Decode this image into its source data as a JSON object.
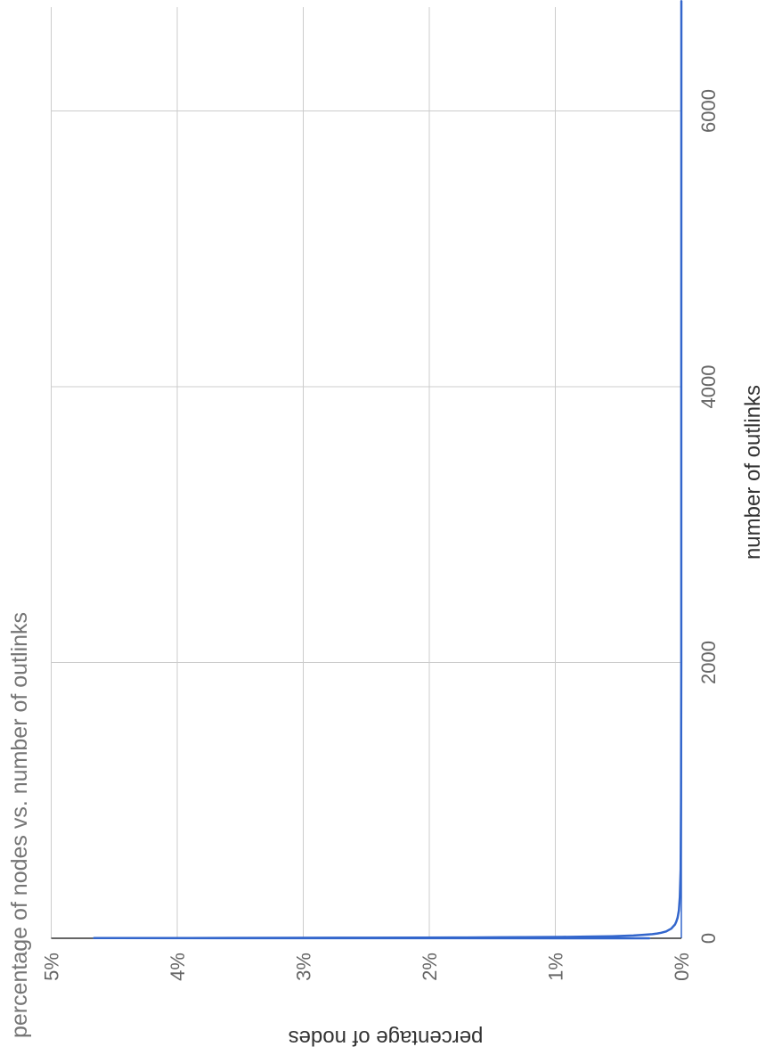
{
  "chart_data": {
    "type": "line",
    "orientation": "rotated 90 degrees clockwise",
    "title": "percentage of nodes vs. number of outlinks",
    "xlabel": "number of outlinks",
    "ylabel": "percentage of nodes",
    "xlim": [
      0,
      6800
    ],
    "ylim": [
      0,
      5
    ],
    "x_ticks": [
      "0",
      "2000",
      "4000",
      "6000"
    ],
    "y_ticks": [
      "0%",
      "1%",
      "2%",
      "3%",
      "4%",
      "5%"
    ],
    "grid": true,
    "legend": "none",
    "colors": {
      "series": "#3366cc",
      "grid": "#cccccc",
      "axis": "#333333"
    },
    "series": [
      {
        "x": [
          0,
          1,
          2,
          3,
          4,
          5,
          6,
          7,
          8,
          10,
          12,
          15,
          20,
          25,
          30,
          35,
          40,
          50,
          60,
          70,
          80,
          100,
          120,
          150,
          200,
          300,
          500,
          1000,
          2000,
          4000,
          6800
        ],
        "y": [
          0.25,
          4.66,
          3.9,
          3.1,
          2.5,
          2.05,
          1.7,
          1.45,
          1.25,
          0.95,
          0.75,
          0.55,
          0.38,
          0.3,
          0.23,
          0.19,
          0.16,
          0.12,
          0.1,
          0.08,
          0.07,
          0.05,
          0.04,
          0.03,
          0.02,
          0.012,
          0.006,
          0.003,
          0.001,
          0.0005,
          0.0002
        ]
      }
    ]
  }
}
